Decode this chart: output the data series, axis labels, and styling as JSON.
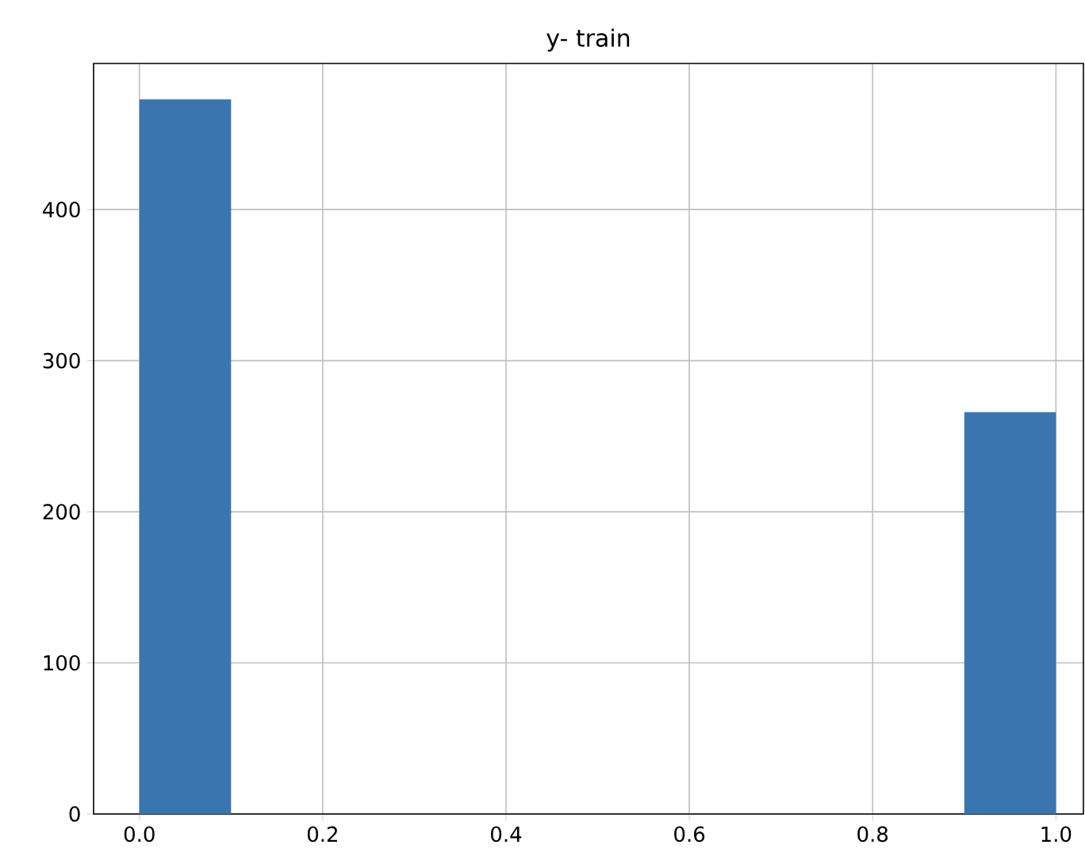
{
  "chart_data": {
    "type": "histogram",
    "title": "y- train",
    "bins": [
      0.0,
      0.1,
      0.2,
      0.3,
      0.4,
      0.5,
      0.6,
      0.7,
      0.8,
      0.9,
      1.0
    ],
    "values": [
      473,
      0,
      0,
      0,
      0,
      0,
      0,
      0,
      0,
      266
    ],
    "color": "#3a75b0",
    "xlim": [
      -0.05,
      1.03
    ],
    "ylim": [
      0,
      496.7
    ],
    "xticks": [
      {
        "value": 0.0,
        "label": "0.0"
      },
      {
        "value": 0.2,
        "label": "0.2"
      },
      {
        "value": 0.4,
        "label": "0.4"
      },
      {
        "value": 0.6,
        "label": "0.6"
      },
      {
        "value": 0.8,
        "label": "0.8"
      },
      {
        "value": 1.0,
        "label": "1.0"
      }
    ],
    "yticks": [
      0,
      100,
      200,
      300,
      400
    ],
    "grid": true
  }
}
